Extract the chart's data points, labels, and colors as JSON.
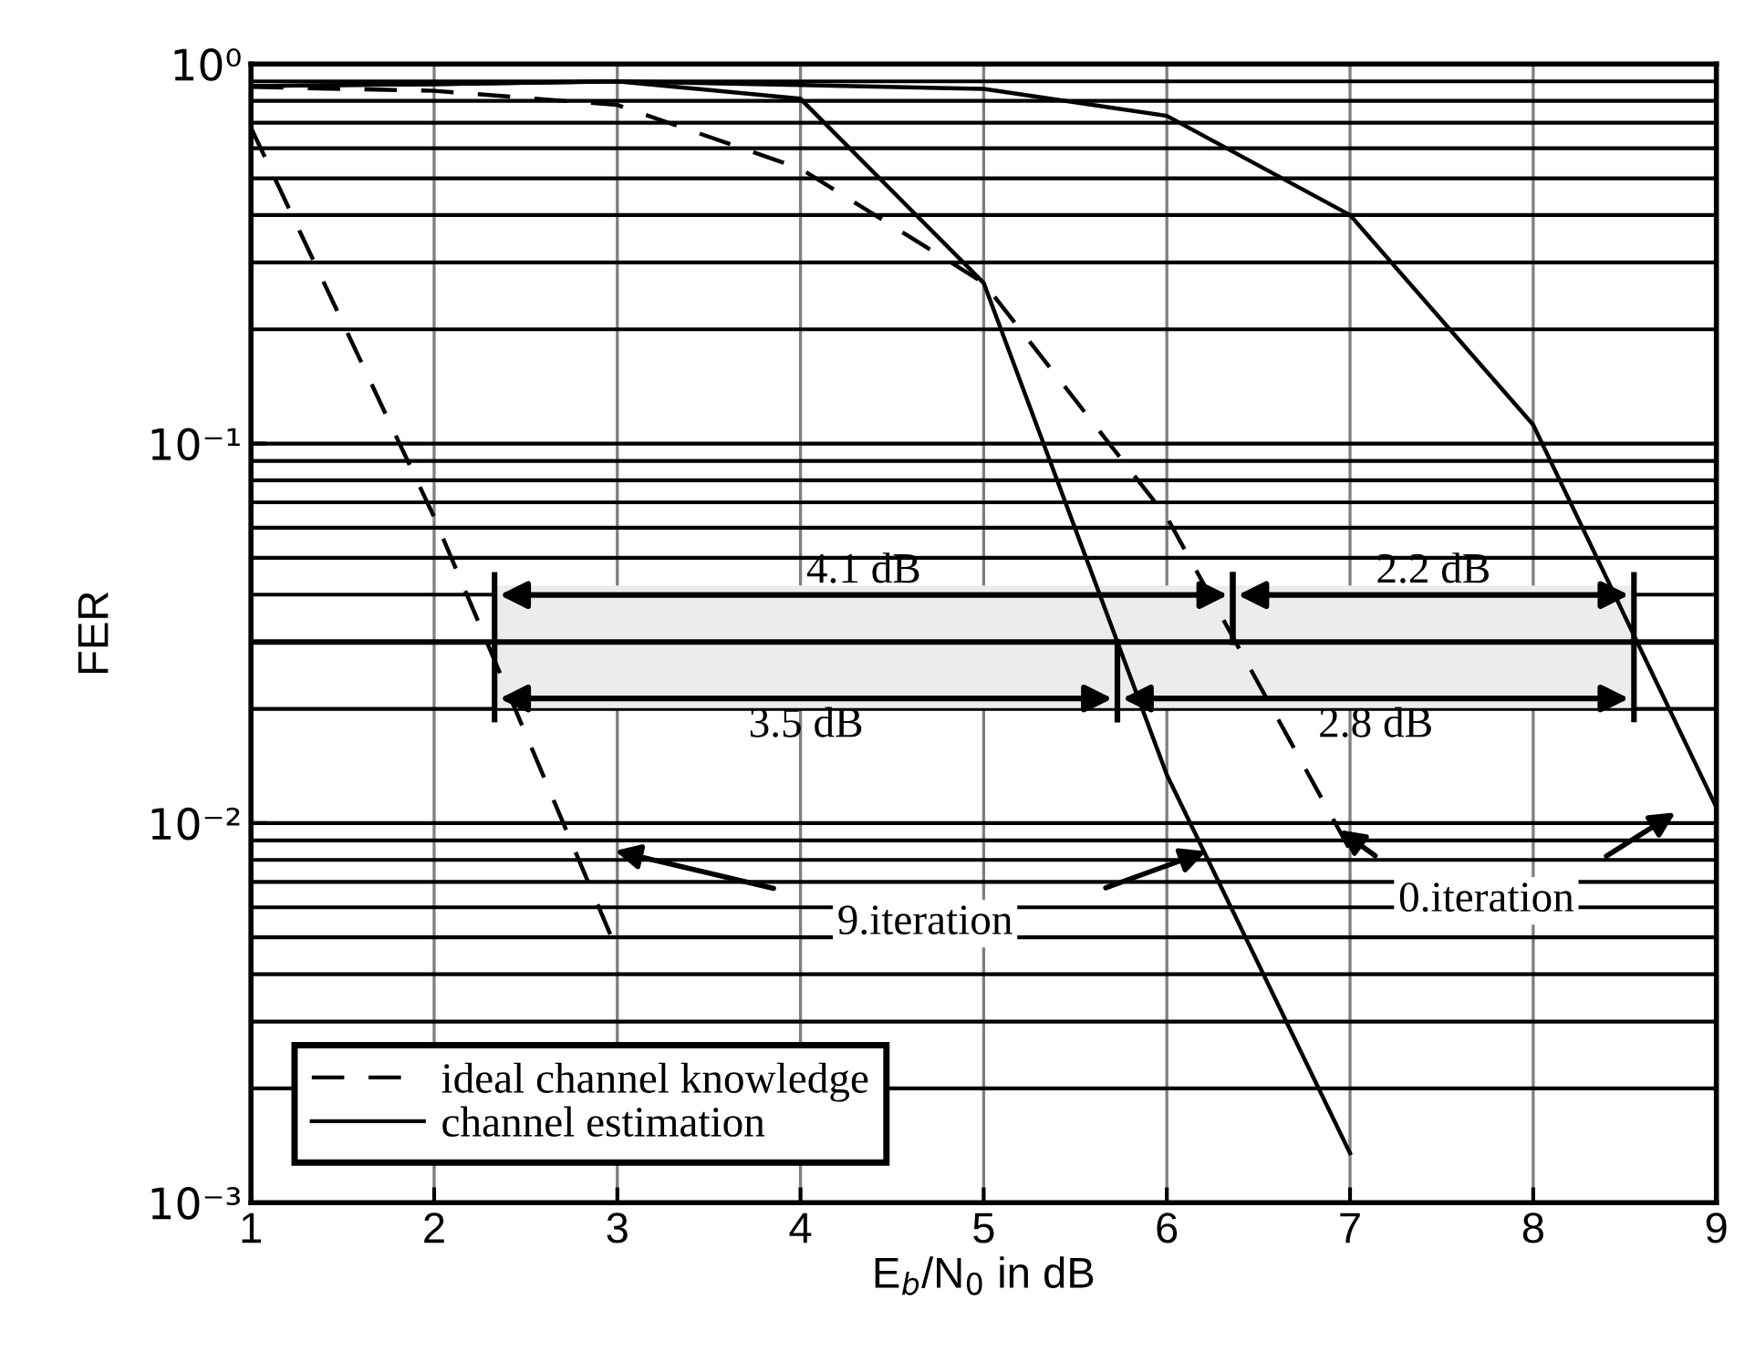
{
  "chart_data": {
    "type": "line",
    "xlabel": "E$_{b}$/N$_{0}$ in dB",
    "ylabel": "FER",
    "log": "y",
    "xlim": [
      1,
      9
    ],
    "xticks": [
      1,
      2,
      3,
      4,
      5,
      6,
      7,
      8,
      9
    ],
    "ylim": [
      0.001,
      1
    ],
    "yticks": [
      {
        "value": 1,
        "label": "10⁰"
      },
      {
        "value": 0.1,
        "label": "10⁻¹"
      },
      {
        "value": 0.01,
        "label": "10⁻²"
      },
      {
        "value": 0.001,
        "label": "10⁻³"
      }
    ],
    "grid": true,
    "legend": "bottom left",
    "marker": "none",
    "series": [
      {
        "name": "ideal channel knowledge",
        "color": "#000000",
        "line_style": "dashed",
        "x": [
          1,
          2,
          3
        ],
        "values": [
          0.68,
          0.064,
          0.0046
        ]
      },
      {
        "color": "#000000",
        "line_style": "dashed",
        "x": [
          1,
          2,
          3,
          4,
          5,
          6,
          7
        ],
        "values": [
          0.87,
          0.85,
          0.78,
          0.53,
          0.265,
          0.064,
          0.0085
        ]
      },
      {
        "name": "channel estimation",
        "color": "#000000",
        "line_style": "solid",
        "x": [
          1,
          2,
          3,
          4,
          5,
          6,
          7
        ],
        "values": [
          0.875,
          0.885,
          0.9,
          0.81,
          0.265,
          0.0134,
          0.00135
        ]
      },
      {
        "color": "#000000",
        "line_style": "solid",
        "x": [
          1,
          2,
          3,
          4,
          5,
          6,
          7,
          8,
          9
        ],
        "values": [
          0.875,
          0.885,
          0.9,
          0.88,
          0.86,
          0.73,
          0.4,
          0.112,
          0.011
        ]
      }
    ],
    "ref_lines": [
      {
        "axis": "y",
        "value": 0.03,
        "color": "#000000"
      }
    ],
    "bands": [
      {
        "axis": "x",
        "from": 2.33,
        "to": 6.36,
        "label": "4.1 dB"
      },
      {
        "axis": "x",
        "from": 6.36,
        "to": 8.55,
        "label": "2.2 dB"
      },
      {
        "axis": "x",
        "from": 2.33,
        "to": 5.73,
        "label": "3.5 dB"
      },
      {
        "axis": "x",
        "from": 5.73,
        "to": 8.55,
        "label": "2.8 dB"
      }
    ],
    "annotations": [
      "9.iteration",
      "0.iteration"
    ]
  }
}
